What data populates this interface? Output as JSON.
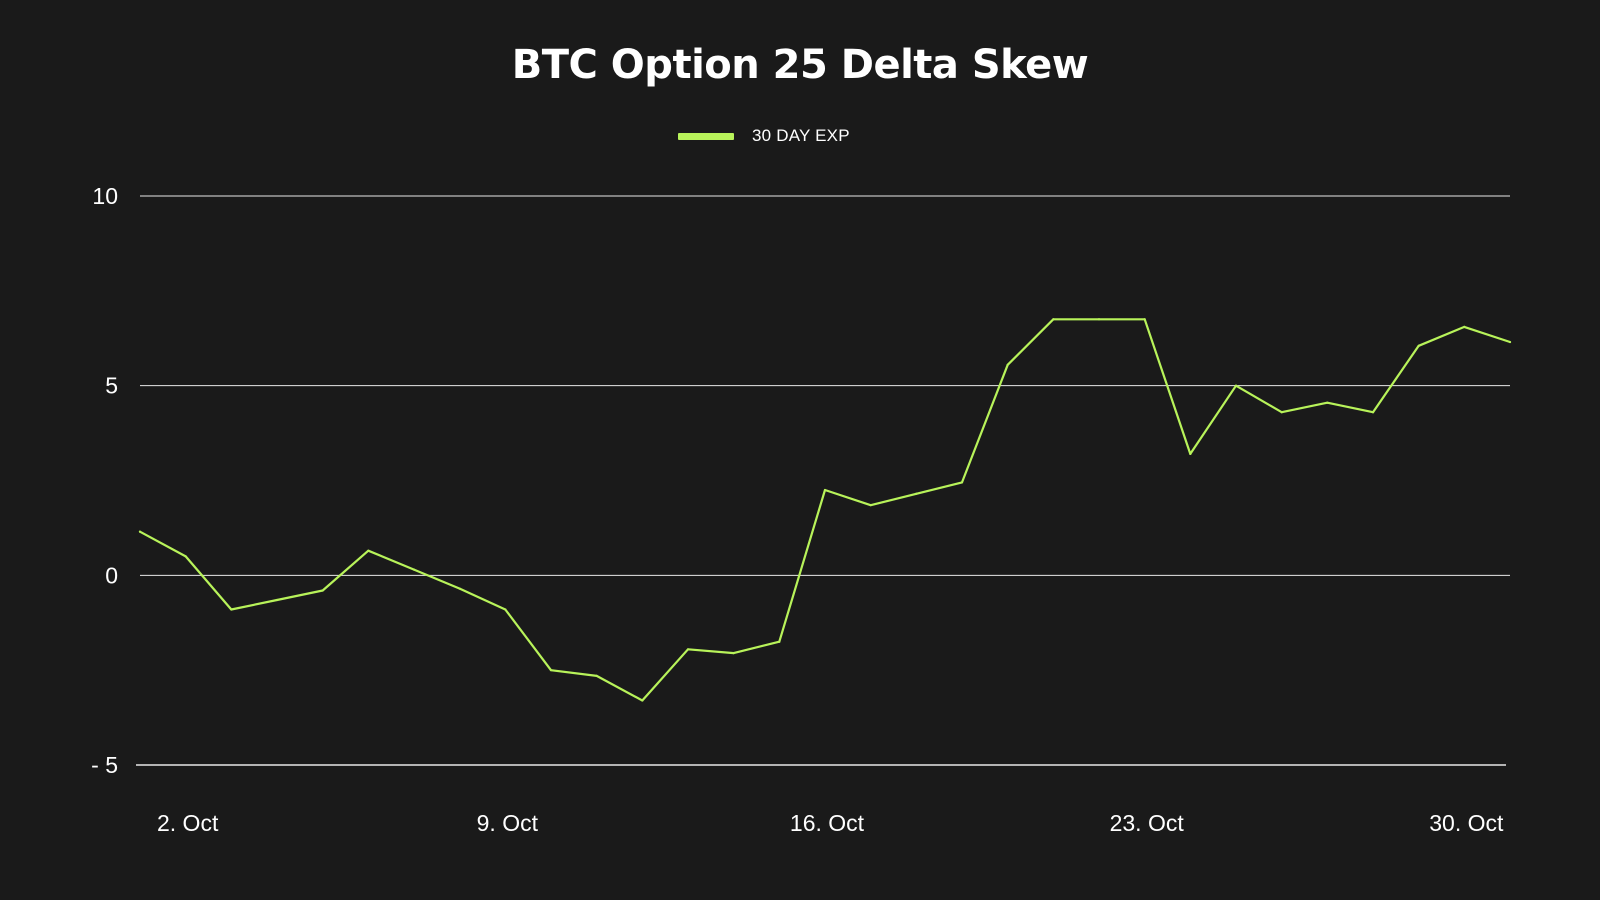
{
  "chart_data": {
    "type": "line",
    "title": "BTC Option 25 Delta Skew",
    "xlabel": "",
    "ylabel": "",
    "ylim": [
      -5,
      10
    ],
    "yticks": [
      10,
      5,
      0,
      -5
    ],
    "ytick_labels": [
      "10",
      "5",
      "0",
      "- 5"
    ],
    "xlim": [
      "2023-10-01",
      "2023-10-31"
    ],
    "xticks": [
      "2023-10-02",
      "2023-10-09",
      "2023-10-16",
      "2023-10-23",
      "2023-10-30"
    ],
    "xtick_labels": [
      "2. Oct",
      "9. Oct",
      "16. Oct",
      "23. Oct",
      "30. Oct"
    ],
    "grid": true,
    "legend_position": "top-center",
    "series": [
      {
        "name": "30 DAY EXP",
        "color": "#b8f35a",
        "x": [
          "2023-10-01",
          "2023-10-02",
          "2023-10-03",
          "2023-10-04",
          "2023-10-05",
          "2023-10-06",
          "2023-10-07",
          "2023-10-08",
          "2023-10-09",
          "2023-10-10",
          "2023-10-11",
          "2023-10-12",
          "2023-10-13",
          "2023-10-14",
          "2023-10-15",
          "2023-10-16",
          "2023-10-17",
          "2023-10-18",
          "2023-10-19",
          "2023-10-20",
          "2023-10-21",
          "2023-10-22",
          "2023-10-23",
          "2023-10-24",
          "2023-10-25",
          "2023-10-26",
          "2023-10-27",
          "2023-10-28",
          "2023-10-29",
          "2023-10-30",
          "2023-10-31"
        ],
        "values": [
          1.15,
          0.5,
          -0.9,
          -0.65,
          -0.4,
          0.65,
          0.15,
          -0.35,
          -0.9,
          -2.5,
          -2.65,
          -3.3,
          -1.95,
          -2.05,
          -1.75,
          2.25,
          1.85,
          2.15,
          2.45,
          5.55,
          6.75,
          6.75,
          6.75,
          3.2,
          5.0,
          4.3,
          4.55,
          4.3,
          6.05,
          6.55,
          6.15
        ]
      }
    ]
  }
}
